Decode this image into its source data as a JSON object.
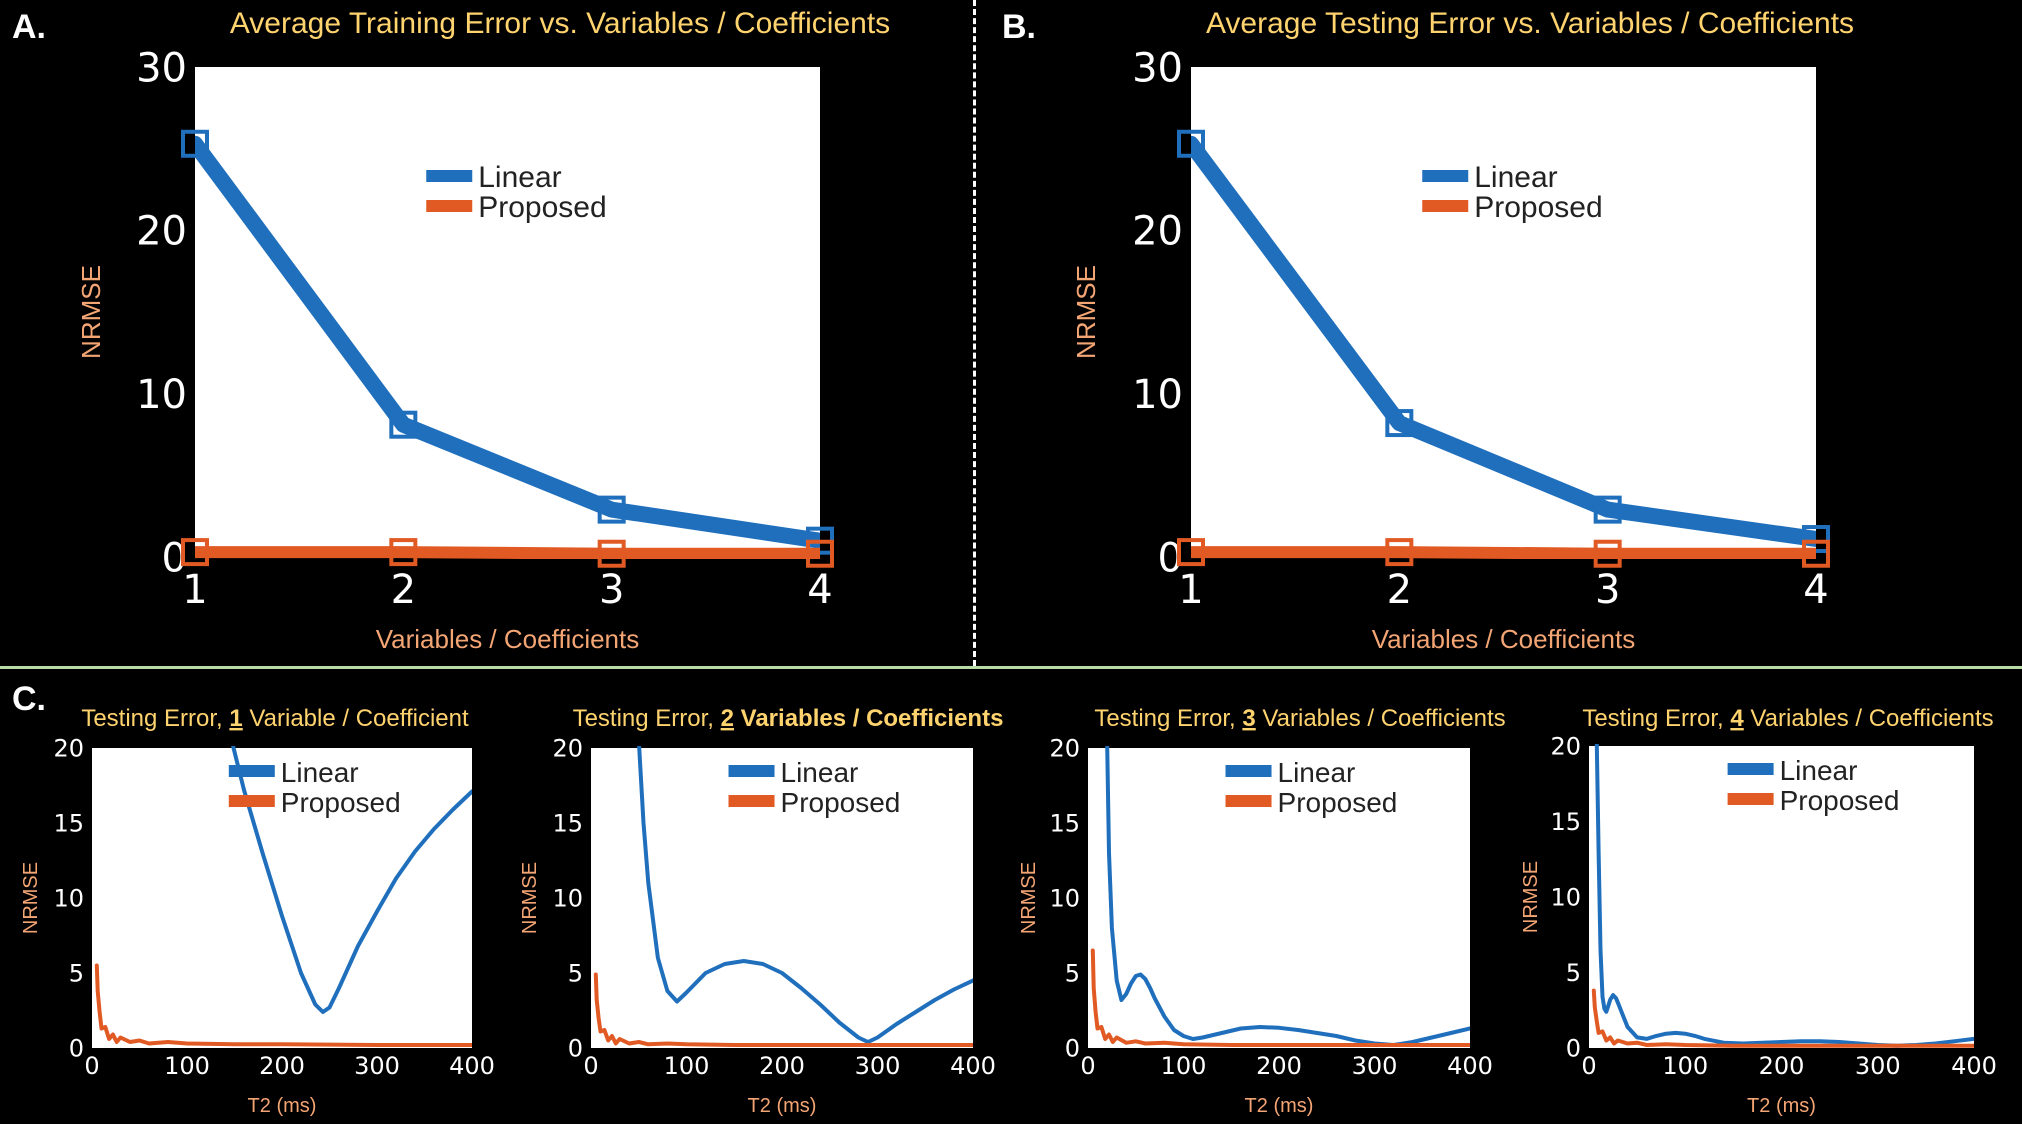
{
  "panel_letters": [
    "A.",
    "B.",
    "C."
  ],
  "colors": {
    "linear": "#1f6fbd",
    "proposed": "#e15a24",
    "title": "#ffd36e",
    "axis_label": "#f4a574",
    "tick": "#ffffff",
    "plot_bg": "#ffffff",
    "separator_v": "#ffffff",
    "separator_h": "#b7dcaa"
  },
  "chart_data": [
    {
      "type": "line",
      "title": "Average Training Error vs. Variables / Coefficients",
      "xlabel": "Variables / Coefficients",
      "ylabel": "NRMSE",
      "xlim": [
        1,
        4
      ],
      "ylim": [
        0,
        30
      ],
      "xticks": [
        1,
        2,
        3,
        4
      ],
      "yticks": [
        0,
        10,
        20,
        30
      ],
      "legend": [
        "Linear",
        "Proposed"
      ],
      "legend_position": "top-right",
      "markers": "square",
      "series": [
        {
          "name": "Linear",
          "x": [
            1,
            2,
            3,
            4
          ],
          "y": [
            25.3,
            8.1,
            2.9,
            1.0
          ]
        },
        {
          "name": "Proposed",
          "x": [
            1,
            2,
            3,
            4
          ],
          "y": [
            0.3,
            0.3,
            0.2,
            0.2
          ]
        }
      ]
    },
    {
      "type": "line",
      "title": "Average Testing Error vs. Variables / Coefficients",
      "xlabel": "Variables / Coefficients",
      "ylabel": "NRMSE",
      "xlim": [
        1,
        4
      ],
      "ylim": [
        0,
        30
      ],
      "xticks": [
        1,
        2,
        3,
        4
      ],
      "yticks": [
        0,
        10,
        20,
        30
      ],
      "legend": [
        "Linear",
        "Proposed"
      ],
      "legend_position": "top-right",
      "markers": "square",
      "series": [
        {
          "name": "Linear",
          "x": [
            1,
            2,
            3,
            4
          ],
          "y": [
            25.3,
            8.2,
            2.9,
            1.1
          ]
        },
        {
          "name": "Proposed",
          "x": [
            1,
            2,
            3,
            4
          ],
          "y": [
            0.3,
            0.3,
            0.2,
            0.2
          ]
        }
      ]
    },
    {
      "type": "line",
      "title_parts": [
        "Testing Error, ",
        "1",
        " Variable / Coefficient"
      ],
      "title_bold": false,
      "xlabel": "T2 (ms)",
      "ylabel": "NRMSE",
      "xlim": [
        0,
        400
      ],
      "ylim": [
        0,
        20
      ],
      "xticks": [
        0,
        100,
        200,
        300,
        400
      ],
      "yticks": [
        0,
        5,
        10,
        15,
        20
      ],
      "legend": [
        "Linear",
        "Proposed"
      ],
      "legend_position": "top-right",
      "series": [
        {
          "name": "Linear",
          "x": [
            147,
            160,
            180,
            200,
            220,
            235,
            243,
            250,
            260,
            280,
            300,
            320,
            340,
            360,
            380,
            400
          ],
          "y": [
            20.5,
            17.2,
            12.9,
            8.8,
            5.0,
            2.9,
            2.4,
            2.7,
            4.0,
            6.8,
            9.1,
            11.3,
            13.1,
            14.6,
            15.9,
            17.1
          ]
        },
        {
          "name": "Proposed",
          "x": [
            5,
            6,
            8,
            10,
            14,
            18,
            22,
            26,
            30,
            40,
            50,
            60,
            80,
            100,
            150,
            200,
            300,
            400
          ],
          "y": [
            5.5,
            3.8,
            2.4,
            1.3,
            1.4,
            0.6,
            0.9,
            0.4,
            0.7,
            0.4,
            0.5,
            0.3,
            0.4,
            0.3,
            0.25,
            0.25,
            0.2,
            0.2
          ]
        }
      ]
    },
    {
      "type": "line",
      "title_parts": [
        "Testing Error, ",
        "2",
        " Variables / Coefficients"
      ],
      "title_bold": true,
      "xlabel": "T2 (ms)",
      "ylabel": "NRMSE",
      "xlim": [
        0,
        400
      ],
      "ylim": [
        0,
        20
      ],
      "xticks": [
        0,
        100,
        200,
        300,
        400
      ],
      "yticks": [
        0,
        5,
        10,
        15,
        20
      ],
      "legend": [
        "Linear",
        "Proposed"
      ],
      "legend_position": "top-right",
      "series": [
        {
          "name": "Linear",
          "x": [
            50,
            55,
            60,
            70,
            80,
            90,
            100,
            120,
            140,
            160,
            180,
            200,
            220,
            240,
            260,
            280,
            290,
            300,
            320,
            340,
            360,
            380,
            400
          ],
          "y": [
            20.5,
            15.0,
            11.0,
            6.0,
            3.8,
            3.1,
            3.7,
            5.0,
            5.6,
            5.8,
            5.6,
            5.0,
            4.0,
            2.9,
            1.7,
            0.7,
            0.4,
            0.7,
            1.6,
            2.4,
            3.2,
            3.9,
            4.5
          ]
        },
        {
          "name": "Proposed",
          "x": [
            5,
            6,
            8,
            10,
            14,
            18,
            22,
            26,
            30,
            40,
            50,
            60,
            80,
            100,
            150,
            200,
            300,
            400
          ],
          "y": [
            4.9,
            3.2,
            2.0,
            1.1,
            1.2,
            0.5,
            0.8,
            0.3,
            0.6,
            0.3,
            0.4,
            0.25,
            0.3,
            0.25,
            0.2,
            0.2,
            0.2,
            0.2
          ]
        }
      ]
    },
    {
      "type": "line",
      "title_parts": [
        "Testing Error, ",
        "3",
        " Variables / Coefficients"
      ],
      "title_bold": false,
      "xlabel": "T2 (ms)",
      "ylabel": "NRMSE",
      "xlim": [
        0,
        400
      ],
      "ylim": [
        0,
        20
      ],
      "xticks": [
        0,
        100,
        200,
        300,
        400
      ],
      "yticks": [
        0,
        5,
        10,
        15,
        20
      ],
      "legend": [
        "Linear",
        "Proposed"
      ],
      "legend_position": "top-right",
      "series": [
        {
          "name": "Linear",
          "x": [
            20,
            22,
            25,
            30,
            35,
            40,
            45,
            50,
            55,
            60,
            65,
            70,
            80,
            90,
            100,
            110,
            120,
            140,
            160,
            180,
            200,
            220,
            240,
            260,
            280,
            300,
            320,
            340,
            360,
            380,
            400
          ],
          "y": [
            20.5,
            13.0,
            8.0,
            4.5,
            3.2,
            3.6,
            4.3,
            4.8,
            4.9,
            4.6,
            4.0,
            3.3,
            2.1,
            1.2,
            0.8,
            0.6,
            0.7,
            1.0,
            1.3,
            1.4,
            1.35,
            1.2,
            1.0,
            0.8,
            0.5,
            0.3,
            0.2,
            0.4,
            0.7,
            1.0,
            1.3
          ]
        },
        {
          "name": "Proposed",
          "x": [
            5,
            6,
            8,
            10,
            14,
            18,
            22,
            26,
            30,
            40,
            50,
            60,
            80,
            100,
            150,
            200,
            300,
            400
          ],
          "y": [
            6.5,
            4.0,
            2.4,
            1.3,
            1.4,
            0.6,
            0.9,
            0.4,
            0.7,
            0.35,
            0.45,
            0.3,
            0.35,
            0.25,
            0.2,
            0.2,
            0.2,
            0.2
          ]
        }
      ]
    },
    {
      "type": "line",
      "title_parts": [
        "Testing Error, ",
        "4",
        " Variables / Coefficients"
      ],
      "title_bold": false,
      "xlabel": "T2 (ms)",
      "ylabel": "NRMSE",
      "xlim": [
        0,
        400
      ],
      "ylim": [
        0,
        20
      ],
      "xticks": [
        0,
        100,
        200,
        300,
        400
      ],
      "yticks": [
        0,
        5,
        10,
        15,
        20
      ],
      "legend": [
        "Linear",
        "Proposed"
      ],
      "legend_position": "top-right",
      "series": [
        {
          "name": "Linear",
          "x": [
            8,
            10,
            12,
            14,
            16,
            18,
            20,
            22,
            25,
            28,
            30,
            35,
            40,
            50,
            60,
            70,
            80,
            90,
            100,
            110,
            120,
            140,
            160,
            180,
            200,
            220,
            240,
            260,
            280,
            300,
            320,
            340,
            360,
            380,
            400
          ],
          "y": [
            20.5,
            13.0,
            6.5,
            3.4,
            2.6,
            2.4,
            2.8,
            3.2,
            3.5,
            3.3,
            3.0,
            2.2,
            1.4,
            0.7,
            0.6,
            0.8,
            0.95,
            1.0,
            0.95,
            0.8,
            0.6,
            0.35,
            0.3,
            0.35,
            0.4,
            0.45,
            0.45,
            0.4,
            0.3,
            0.2,
            0.15,
            0.2,
            0.3,
            0.45,
            0.6
          ]
        },
        {
          "name": "Proposed",
          "x": [
            5,
            6,
            8,
            10,
            14,
            18,
            22,
            26,
            30,
            40,
            50,
            60,
            80,
            100,
            150,
            200,
            300,
            400
          ],
          "y": [
            3.8,
            2.7,
            1.8,
            1.0,
            1.1,
            0.5,
            0.7,
            0.3,
            0.5,
            0.3,
            0.35,
            0.2,
            0.25,
            0.2,
            0.15,
            0.15,
            0.15,
            0.15
          ]
        }
      ]
    }
  ]
}
